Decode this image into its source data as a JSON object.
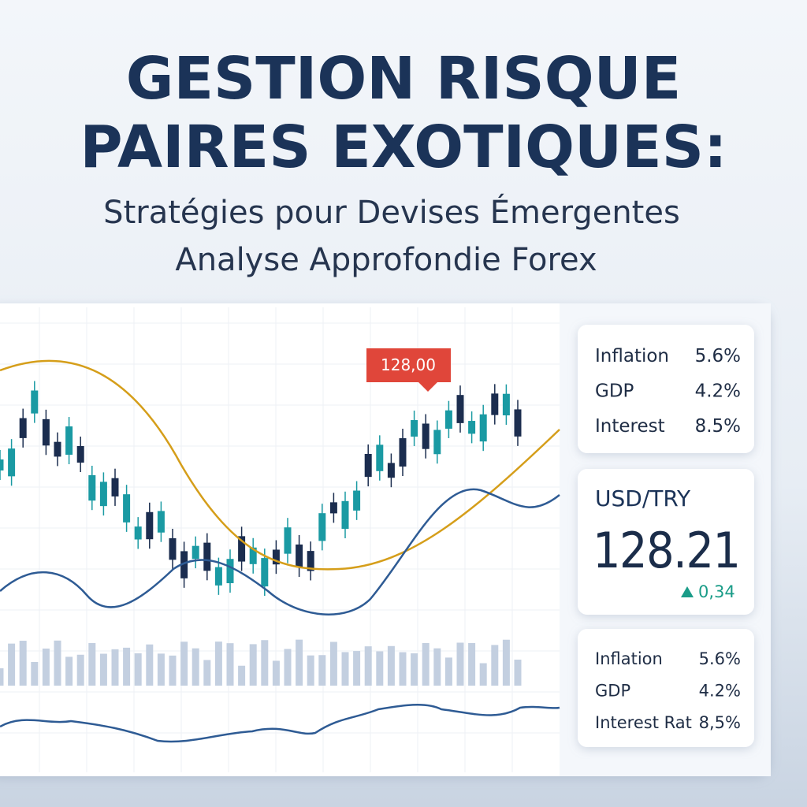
{
  "header": {
    "title_lines": [
      "GESTION RISQUE",
      "PAIRES EXOTIQUES:"
    ],
    "subtitle_lines": [
      "Stratégies pour Devises Émergentes",
      "Analyse Approfondie Forex"
    ]
  },
  "chart": {
    "price_tag": "128,00"
  },
  "top_panel": {
    "rows": [
      [
        "Inflation",
        "5.6%"
      ],
      [
        "GDP",
        "4.2%"
      ],
      [
        "Interest",
        "8.5%"
      ]
    ]
  },
  "ticker": {
    "pair": "USD/TRY",
    "price": "128.21",
    "change": "0,34"
  },
  "bottom_panel": {
    "rows": [
      [
        "Inflation",
        "5.6%"
      ],
      [
        "GDP",
        "4.2%"
      ],
      [
        "Interest Rat",
        "8,5%"
      ]
    ]
  }
}
